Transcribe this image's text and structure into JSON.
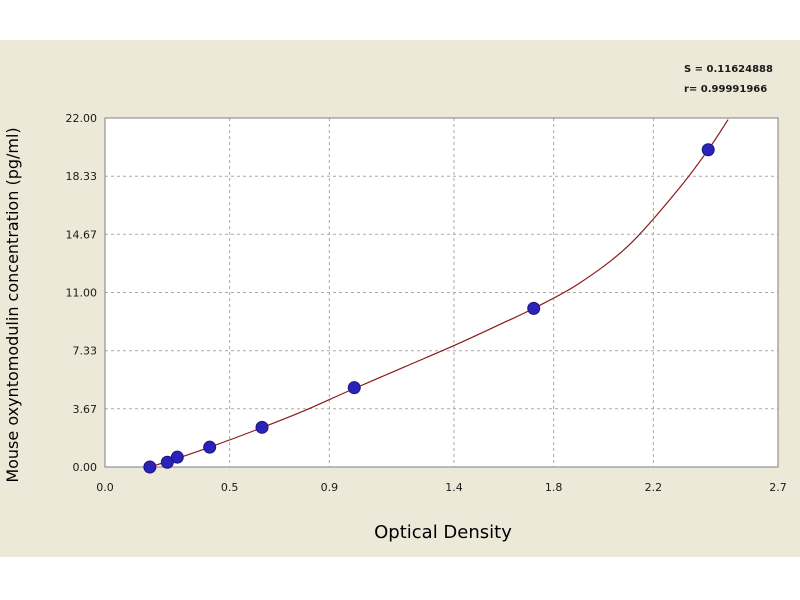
{
  "stats": {
    "s_text": "S = 0.11624888",
    "r_text": "r= 0.99991966"
  },
  "colors": {
    "panel_background": "#ece9d8",
    "plot_background": "#ffffff",
    "grid": "#a9a9a9",
    "curve": "#8b1a1a",
    "point": "#2b22b8"
  },
  "chart_data": {
    "type": "scatter",
    "title": "",
    "xlabel": "Optical Density",
    "ylabel": "Mouse oxyntomodulin concentration (pg/ml)",
    "xlim": [
      0.0,
      2.7
    ],
    "ylim": [
      0.0,
      22.0
    ],
    "x_ticks": [
      0.0,
      0.5,
      0.9,
      1.4,
      1.8,
      2.2,
      2.7
    ],
    "x_tick_labels": [
      "0.0",
      "0.5",
      "0.9",
      "1.4",
      "1.8",
      "2.2",
      "2.7"
    ],
    "y_ticks": [
      0.0,
      3.67,
      7.33,
      11.0,
      14.67,
      18.33,
      22.0
    ],
    "y_tick_labels": [
      "0.00",
      "3.67",
      "7.33",
      "11.00",
      "14.67",
      "18.33",
      "22.00"
    ],
    "grid": true,
    "series": [
      {
        "points": [
          {
            "x": 0.18,
            "y": 0.0
          },
          {
            "x": 0.25,
            "y": 0.3
          },
          {
            "x": 0.29,
            "y": 0.62
          },
          {
            "x": 0.42,
            "y": 1.25
          },
          {
            "x": 0.63,
            "y": 2.5
          },
          {
            "x": 1.0,
            "y": 5.0
          },
          {
            "x": 1.72,
            "y": 10.0
          },
          {
            "x": 2.42,
            "y": 20.0
          }
        ]
      }
    ],
    "fit_curve": {
      "points": [
        {
          "x": 0.18,
          "y": 0.0
        },
        {
          "x": 0.3,
          "y": 0.6
        },
        {
          "x": 0.42,
          "y": 1.25
        },
        {
          "x": 0.6,
          "y": 2.3
        },
        {
          "x": 0.8,
          "y": 3.55
        },
        {
          "x": 1.0,
          "y": 4.95
        },
        {
          "x": 1.2,
          "y": 6.3
        },
        {
          "x": 1.4,
          "y": 7.65
        },
        {
          "x": 1.6,
          "y": 9.1
        },
        {
          "x": 1.72,
          "y": 10.0
        },
        {
          "x": 1.9,
          "y": 11.55
        },
        {
          "x": 2.1,
          "y": 13.95
        },
        {
          "x": 2.3,
          "y": 17.5
        },
        {
          "x": 2.42,
          "y": 20.0
        },
        {
          "x": 2.5,
          "y": 21.9
        }
      ]
    }
  }
}
